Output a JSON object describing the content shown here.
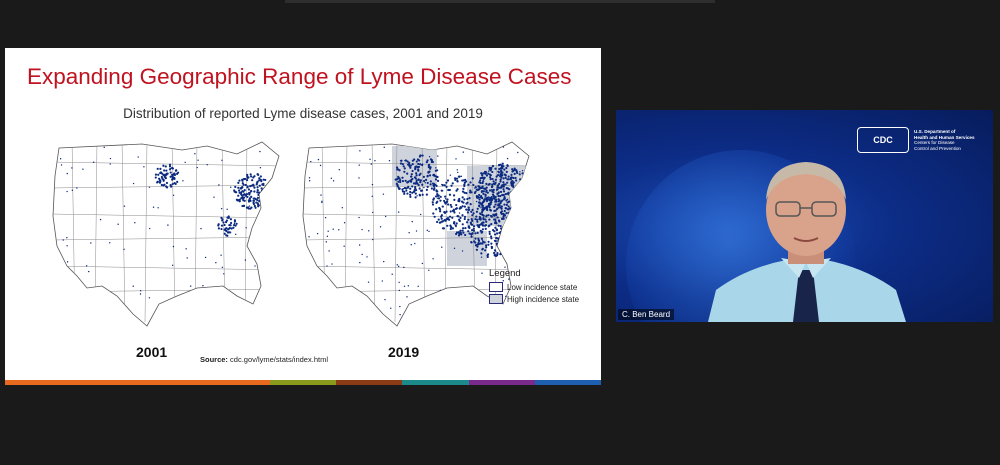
{
  "slide": {
    "title": "Expanding Geographic Range of Lyme Disease Cases",
    "subtitle": "Distribution of reported Lyme disease cases, 2001 and 2019",
    "maps": [
      {
        "year": "2001"
      },
      {
        "year": "2019"
      }
    ],
    "source_label": "Source:",
    "source_text": "cdc.gov/lyme/stats/index.html",
    "legend": {
      "title": "Legend",
      "items": [
        {
          "label": "Low incidence state",
          "color": "#ffffff"
        },
        {
          "label": "High incidence state",
          "color": "#cfd3dc"
        }
      ]
    },
    "dot_color": "#0b2a80",
    "color_bar": [
      "#e86a1e",
      "#e86a1e",
      "#e86a1e",
      "#e86a1e",
      "#8a9a1c",
      "#8b3a16",
      "#1c8a8a",
      "#7a2a8a",
      "#1f5fb0"
    ]
  },
  "participant": {
    "name": "C. Ben Beard",
    "cdc_badge": "CDC",
    "cdc_lines": [
      "U.S. Department of",
      "Health and Human Services",
      "Centers for Disease",
      "Control and Prevention"
    ]
  }
}
